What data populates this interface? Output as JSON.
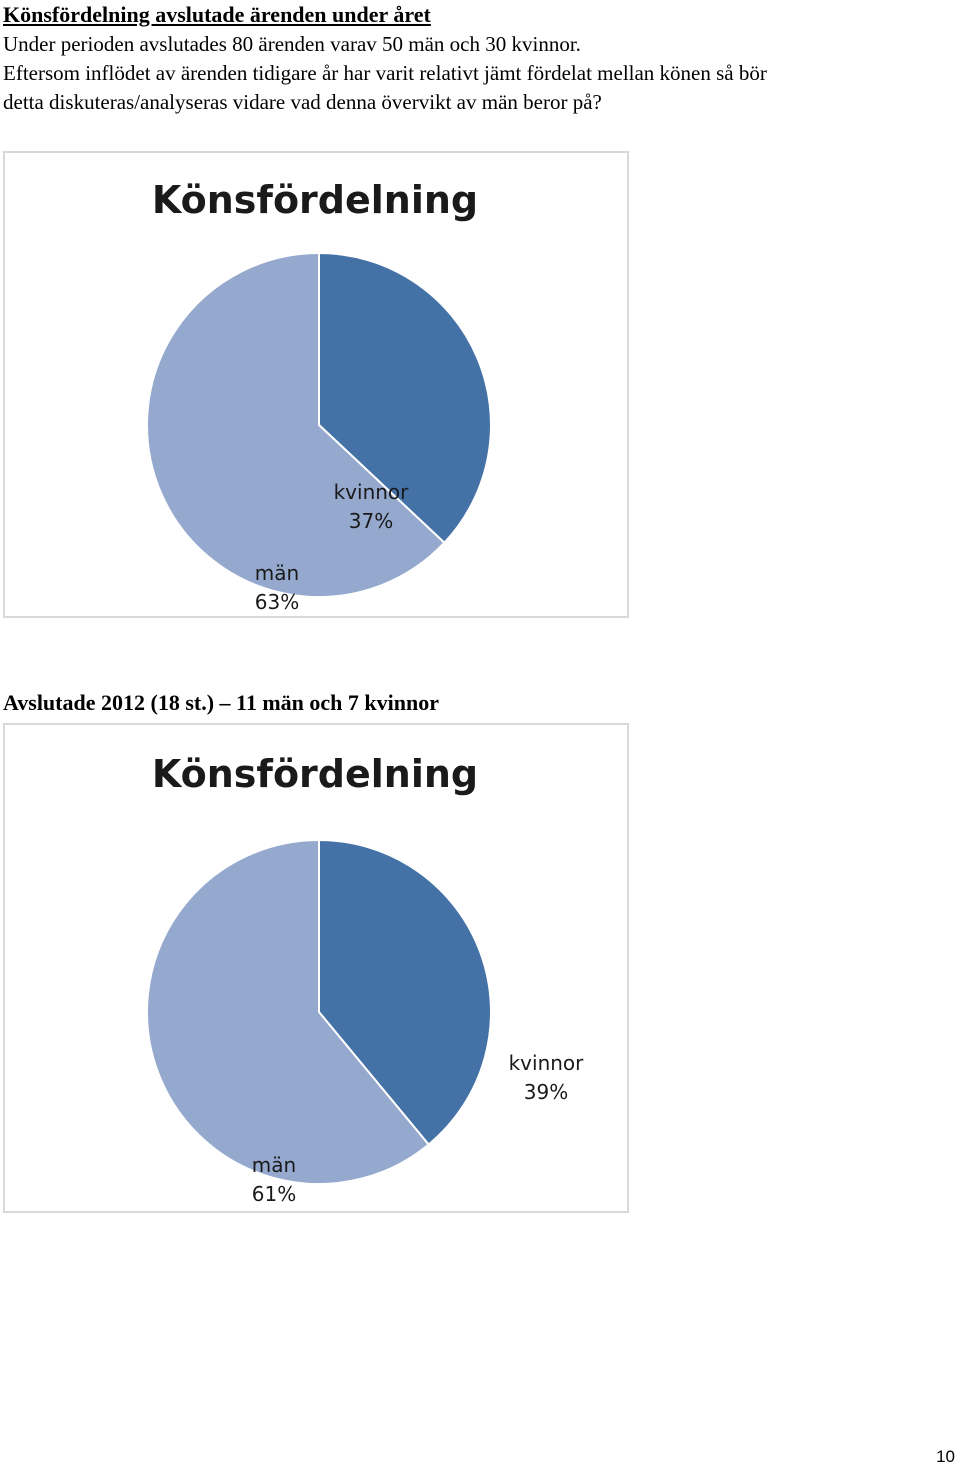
{
  "document": {
    "heading": "Könsfördelning avslutade ärenden under året",
    "paragraph_lines": [
      "Under perioden avslutades 80 ärenden varav 50 män och 30 kvinnor.",
      "Eftersom inflödet av ärenden tidigare år har varit relativt jämt fördelat mellan könen så bör",
      "detta diskuteras/analyseras vidare vad denna övervikt av män beror på?"
    ],
    "subheading": "Avslutade 2012 (18 st.) – 11 män och 7 kvinnor",
    "page_number": "10"
  },
  "chart_data": [
    {
      "type": "pie",
      "title": "Könsfördelning",
      "slices": [
        {
          "label": "kvinnor",
          "percent_label": "37%",
          "value": 37,
          "color": "#4472a6"
        },
        {
          "label": "män",
          "percent_label": "63%",
          "value": 63,
          "color": "#95a9cf"
        }
      ]
    },
    {
      "type": "pie",
      "title": "Könsfördelning",
      "slices": [
        {
          "label": "kvinnor",
          "percent_label": "39%",
          "value": 39,
          "color": "#4472a6"
        },
        {
          "label": "män",
          "percent_label": "61%",
          "value": 61,
          "color": "#95a9cf"
        }
      ]
    }
  ]
}
